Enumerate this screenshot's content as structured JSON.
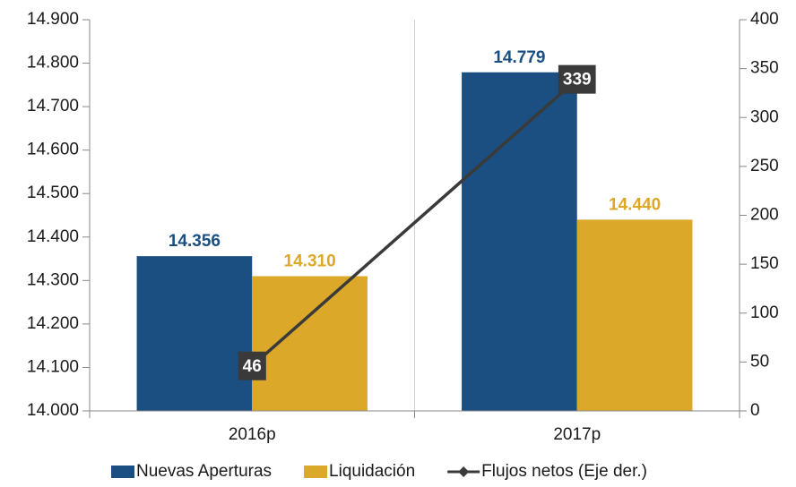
{
  "chart_data": {
    "type": "bar",
    "categories": [
      "2016p",
      "2017p"
    ],
    "series": [
      {
        "name": "Nuevas Aperturas",
        "color": "#1b4f82",
        "values": [
          14356,
          14779
        ],
        "value_labels": [
          "14.356",
          "14.779"
        ]
      },
      {
        "name": "Liquidación",
        "color": "#dca82a",
        "values": [
          14310,
          14440
        ],
        "value_labels": [
          "14.310",
          "14.440"
        ]
      },
      {
        "name": "Flujos netos (Eje der.)",
        "color": "#3a3a3a",
        "type": "line",
        "axis": "y2",
        "values": [
          46,
          339
        ]
      }
    ],
    "ylim": [
      14000,
      14900
    ],
    "yticks": [
      {
        "value": 14000,
        "label": "14.000"
      },
      {
        "value": 14100,
        "label": "14.100"
      },
      {
        "value": 14200,
        "label": "14.200"
      },
      {
        "value": 14300,
        "label": "14.300"
      },
      {
        "value": 14400,
        "label": "14.400"
      },
      {
        "value": 14500,
        "label": "14.500"
      },
      {
        "value": 14600,
        "label": "14.600"
      },
      {
        "value": 14700,
        "label": "14.700"
      },
      {
        "value": 14800,
        "label": "14.800"
      },
      {
        "value": 14900,
        "label": "14.900"
      }
    ],
    "y2lim": [
      0,
      400
    ],
    "y2ticks": [
      0,
      50,
      100,
      150,
      200,
      250,
      300,
      350,
      400
    ],
    "legend": "bottom"
  }
}
